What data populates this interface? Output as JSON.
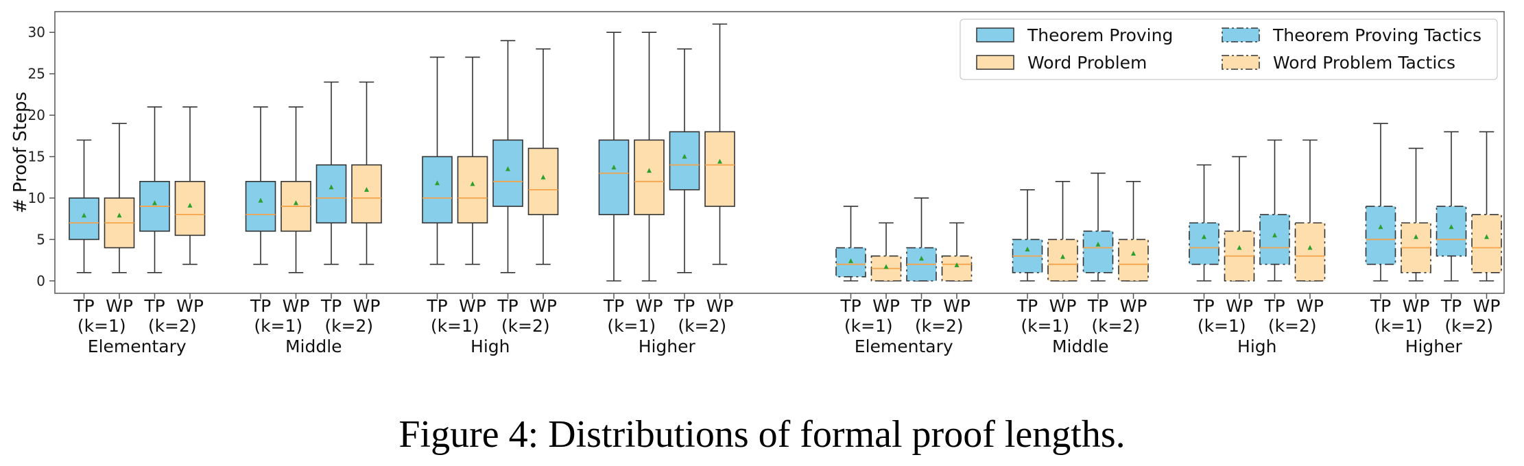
{
  "caption": "Figure 4: Distributions of formal proof lengths.",
  "chart_data": {
    "type": "box",
    "title": "",
    "xlabel": "",
    "ylabel": "# Proof Steps",
    "ylim": [
      -1.5,
      32.5
    ],
    "yticks": [
      0,
      5,
      10,
      15,
      20,
      25,
      30
    ],
    "grid": false,
    "legend": {
      "position": "top-right",
      "entries": [
        {
          "label": "Theorem Proving",
          "fill": "#87ceeb",
          "dash": "solid"
        },
        {
          "label": "Word Problem",
          "fill": "#ffdead",
          "dash": "solid"
        },
        {
          "label": "Theorem Proving Tactics",
          "fill": "#87ceeb",
          "dash": "dashdot"
        },
        {
          "label": "Word Problem Tactics",
          "fill": "#ffdead",
          "dash": "dashdot"
        }
      ]
    },
    "colors": {
      "tp": "#87ceeb",
      "wp": "#ffdead",
      "median": "#f5a34a",
      "mean": "#2ca02c",
      "edge": "#333333"
    },
    "box_labels": [
      "TP",
      "WP",
      "TP",
      "WP"
    ],
    "k_labels": [
      "(k=1)",
      "(k=2)"
    ],
    "sections": [
      {
        "style": "solid",
        "groups": [
          {
            "label": "Elementary",
            "boxes": [
              {
                "type": "TP",
                "whislo": 1,
                "q1": 5,
                "med": 7,
                "q3": 10,
                "whishi": 17,
                "mean": 7.9
              },
              {
                "type": "WP",
                "whislo": 1,
                "q1": 4,
                "med": 7,
                "q3": 10,
                "whishi": 19,
                "mean": 7.9
              },
              {
                "type": "TP",
                "whislo": 1,
                "q1": 6,
                "med": 9,
                "q3": 12,
                "whishi": 21,
                "mean": 9.4
              },
              {
                "type": "WP",
                "whislo": 2,
                "q1": 5.5,
                "med": 8,
                "q3": 12,
                "whishi": 21,
                "mean": 9.1
              }
            ]
          },
          {
            "label": "Middle",
            "boxes": [
              {
                "type": "TP",
                "whislo": 2,
                "q1": 6,
                "med": 8,
                "q3": 12,
                "whishi": 21,
                "mean": 9.7
              },
              {
                "type": "WP",
                "whislo": 1,
                "q1": 6,
                "med": 9,
                "q3": 12,
                "whishi": 21,
                "mean": 9.4
              },
              {
                "type": "TP",
                "whislo": 2,
                "q1": 7,
                "med": 10,
                "q3": 14,
                "whishi": 24,
                "mean": 11.3
              },
              {
                "type": "WP",
                "whislo": 2,
                "q1": 7,
                "med": 10,
                "q3": 14,
                "whishi": 24,
                "mean": 11.0
              }
            ]
          },
          {
            "label": "High",
            "boxes": [
              {
                "type": "TP",
                "whislo": 2,
                "q1": 7,
                "med": 10,
                "q3": 15,
                "whishi": 27,
                "mean": 11.8
              },
              {
                "type": "WP",
                "whislo": 2,
                "q1": 7,
                "med": 10,
                "q3": 15,
                "whishi": 27,
                "mean": 11.7
              },
              {
                "type": "TP",
                "whislo": 1,
                "q1": 9,
                "med": 12,
                "q3": 17,
                "whishi": 29,
                "mean": 13.5
              },
              {
                "type": "WP",
                "whislo": 2,
                "q1": 8,
                "med": 11,
                "q3": 16,
                "whishi": 28,
                "mean": 12.5
              }
            ]
          },
          {
            "label": "Higher",
            "boxes": [
              {
                "type": "TP",
                "whislo": 0,
                "q1": 8,
                "med": 13,
                "q3": 17,
                "whishi": 30,
                "mean": 13.7
              },
              {
                "type": "WP",
                "whislo": 0,
                "q1": 8,
                "med": 12,
                "q3": 17,
                "whishi": 30,
                "mean": 13.3
              },
              {
                "type": "TP",
                "whislo": 1,
                "q1": 11,
                "med": 14,
                "q3": 18,
                "whishi": 28,
                "mean": 15.0
              },
              {
                "type": "WP",
                "whislo": 2,
                "q1": 9,
                "med": 14,
                "q3": 18,
                "whishi": 31,
                "mean": 14.4
              }
            ]
          }
        ]
      },
      {
        "style": "dashdot",
        "groups": [
          {
            "label": "Elementary",
            "boxes": [
              {
                "type": "TP",
                "whislo": 0,
                "q1": 0.5,
                "med": 2,
                "q3": 4,
                "whishi": 9,
                "mean": 2.4
              },
              {
                "type": "WP",
                "whislo": 0,
                "q1": 0,
                "med": 1.5,
                "q3": 3,
                "whishi": 7,
                "mean": 1.7
              },
              {
                "type": "TP",
                "whislo": 0,
                "q1": 0,
                "med": 2,
                "q3": 4,
                "whishi": 10,
                "mean": 2.7
              },
              {
                "type": "WP",
                "whislo": 0,
                "q1": 0,
                "med": 2,
                "q3": 3,
                "whishi": 7,
                "mean": 1.9
              }
            ]
          },
          {
            "label": "Middle",
            "boxes": [
              {
                "type": "TP",
                "whislo": 0,
                "q1": 1,
                "med": 3,
                "q3": 5,
                "whishi": 11,
                "mean": 3.8
              },
              {
                "type": "WP",
                "whislo": 0,
                "q1": 0,
                "med": 2,
                "q3": 5,
                "whishi": 12,
                "mean": 2.9
              },
              {
                "type": "TP",
                "whislo": 0,
                "q1": 1,
                "med": 4,
                "q3": 6,
                "whishi": 13,
                "mean": 4.4
              },
              {
                "type": "WP",
                "whislo": 0,
                "q1": 0,
                "med": 2,
                "q3": 5,
                "whishi": 12,
                "mean": 3.3
              }
            ]
          },
          {
            "label": "High",
            "boxes": [
              {
                "type": "TP",
                "whislo": 0,
                "q1": 2,
                "med": 4,
                "q3": 7,
                "whishi": 14,
                "mean": 5.3
              },
              {
                "type": "WP",
                "whislo": 0,
                "q1": 0,
                "med": 3,
                "q3": 6,
                "whishi": 15,
                "mean": 4.0
              },
              {
                "type": "TP",
                "whislo": 0,
                "q1": 2,
                "med": 4,
                "q3": 8,
                "whishi": 17,
                "mean": 5.5
              },
              {
                "type": "WP",
                "whislo": 0,
                "q1": 0,
                "med": 3,
                "q3": 7,
                "whishi": 17,
                "mean": 4.0
              }
            ]
          },
          {
            "label": "Higher",
            "boxes": [
              {
                "type": "TP",
                "whislo": 0,
                "q1": 2,
                "med": 5,
                "q3": 9,
                "whishi": 19,
                "mean": 6.5
              },
              {
                "type": "WP",
                "whislo": 0,
                "q1": 1,
                "med": 4,
                "q3": 7,
                "whishi": 16,
                "mean": 5.3
              },
              {
                "type": "TP",
                "whislo": 0,
                "q1": 3,
                "med": 5,
                "q3": 9,
                "whishi": 18,
                "mean": 6.5
              },
              {
                "type": "WP",
                "whislo": 0,
                "q1": 1,
                "med": 4,
                "q3": 8,
                "whishi": 18,
                "mean": 5.3
              }
            ]
          }
        ]
      }
    ]
  }
}
